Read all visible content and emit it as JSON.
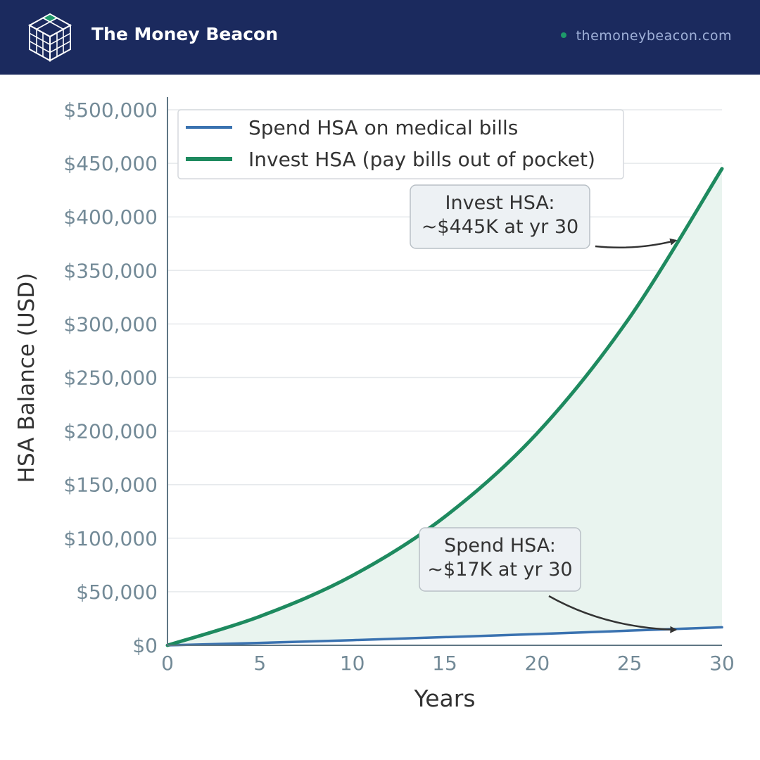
{
  "header": {
    "brand": "The Money Beacon",
    "website": "themoneybeacon.com",
    "logo_icon": "cube-grid-icon",
    "background_color": "#1b2a5e",
    "accent_color": "#1e9a6a"
  },
  "chart_data": {
    "type": "line",
    "title": "",
    "xlabel": "Years",
    "ylabel": "HSA Balance (USD)",
    "xlim": [
      0,
      30
    ],
    "ylim": [
      0,
      500000
    ],
    "x_ticks": [
      0,
      5,
      10,
      15,
      20,
      25,
      30
    ],
    "x_tick_labels": [
      "0",
      "5",
      "10",
      "15",
      "20",
      "25",
      "30"
    ],
    "y_ticks": [
      0,
      50000,
      100000,
      150000,
      200000,
      250000,
      300000,
      350000,
      400000,
      450000,
      500000
    ],
    "y_tick_labels": [
      "$0",
      "$50,000",
      "$100,000",
      "$150,000",
      "$200,000",
      "$250,000",
      "$300,000",
      "$350,000",
      "$400,000",
      "$450,000",
      "$500,000"
    ],
    "grid": true,
    "legend_position": "top-left",
    "fill_between_series": true,
    "fill_color": "#e9f4ef",
    "x": [
      0,
      5,
      10,
      15,
      20,
      25,
      30
    ],
    "series": [
      {
        "name": "Spend HSA on medical bills",
        "color": "#3a72b0",
        "values": [
          0,
          2200,
          4800,
          7600,
          10500,
          13700,
          16800
        ]
      },
      {
        "name": "Invest HSA (pay bills out of pocket)",
        "color": "#1e8a5f",
        "values": [
          0,
          27000,
          65000,
          120000,
          198000,
          306000,
          445000
        ]
      }
    ],
    "annotations": [
      {
        "lines": [
          "Invest HSA:",
          "~$445K at yr 30"
        ],
        "arrow_to_x": 27.5,
        "arrow_to_y": 378000
      },
      {
        "lines": [
          "Spend HSA:",
          "~$17K at yr 30"
        ],
        "arrow_to_x": 27.5,
        "arrow_to_y": 14500
      }
    ]
  }
}
